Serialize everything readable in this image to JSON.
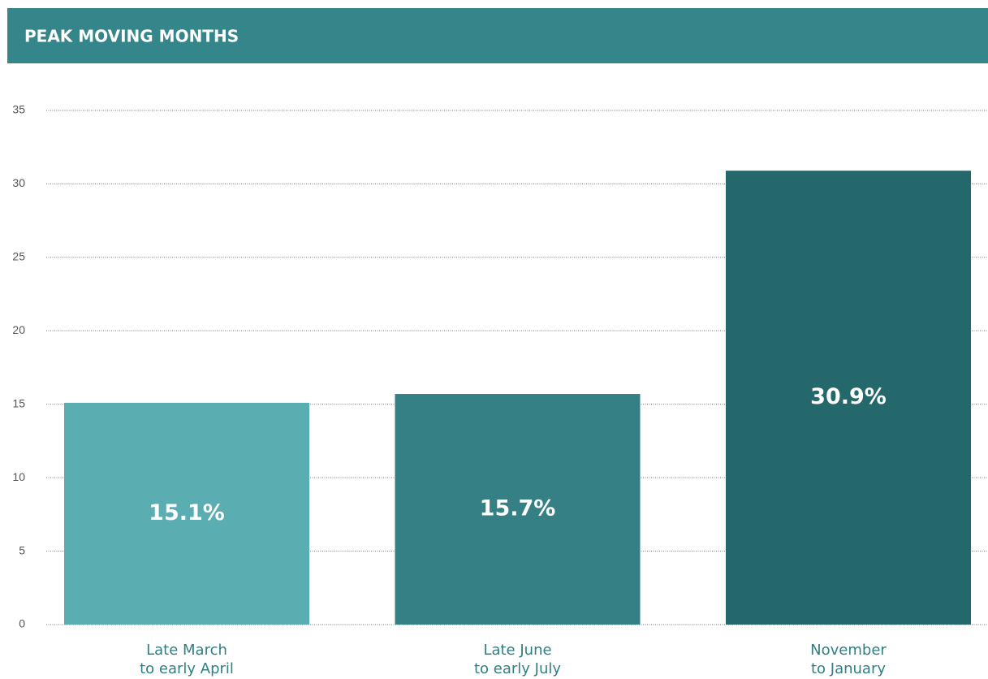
{
  "chart_data": {
    "type": "bar",
    "title": "PEAK MOVING MONTHS",
    "categories": [
      [
        "Late March",
        "to early April"
      ],
      [
        "Late June",
        "to early July"
      ],
      [
        "November",
        "to January"
      ]
    ],
    "values": [
      15.1,
      15.7,
      30.9
    ],
    "value_labels": [
      "15.1%",
      "15.7%",
      "30.9%"
    ],
    "colors": [
      "#5aadb1",
      "#348084",
      "#24686b"
    ],
    "ylim": [
      0,
      35
    ],
    "yticks": [
      0,
      5,
      10,
      15,
      20,
      25,
      30,
      35
    ],
    "grid": true
  }
}
